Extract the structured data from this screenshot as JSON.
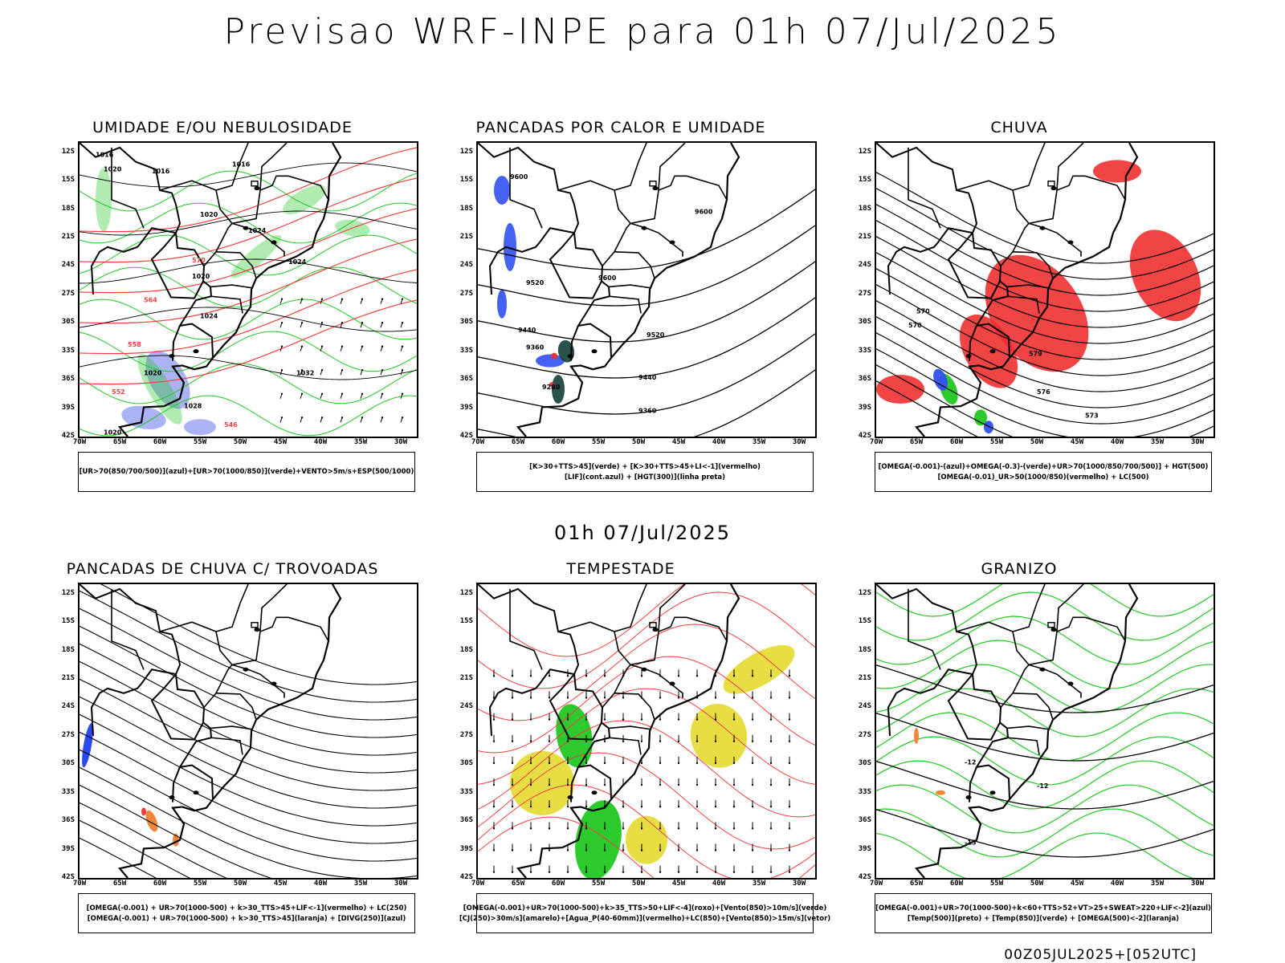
{
  "header": {
    "title": "Previsao WRF-INPE  para 01h 07/Jul/2025"
  },
  "center_stamp": "01h 07/Jul/2025",
  "footer_stamp": "00Z05JUL2025+[052UTC]",
  "axes": {
    "lat_ticks": [
      "12S",
      "15S",
      "18S",
      "21S",
      "24S",
      "27S",
      "30S",
      "33S",
      "36S",
      "39S",
      "42S"
    ],
    "lon_ticks": [
      "70W",
      "65W",
      "60W",
      "55W",
      "50W",
      "45W",
      "40W",
      "35W",
      "30W"
    ]
  },
  "panels": [
    {
      "id": "umidade",
      "title": "UMIDADE E/OU NEBULOSIDADE",
      "legend": [
        "[UR>70(850/700/500)](azul)+[UR>70(1000/850)](verde)+VENTO>5m/s+ESP(500/1000)"
      ],
      "colors": {
        "blue": "#9ea6f2",
        "green": "#22c722",
        "red": "#f04040"
      },
      "contour_labels": [
        "1016",
        "1020",
        "1024",
        "1028",
        "1032",
        "570",
        "564",
        "558",
        "552",
        "546"
      ]
    },
    {
      "id": "pancadas-calor",
      "title": "PANCADAS POR CALOR E UMIDADE",
      "legend": [
        "[K>30+TTS>45](verde) + [K>30+TTS>45+LI<-1](vermelho)",
        "[LIF](cont.azul) + [HGT(300)](linha preta)"
      ],
      "colors": {
        "blue": "#3050f0",
        "dark": "#1e4a40",
        "red": "#e03030"
      },
      "contour_labels": [
        "9600",
        "9520",
        "9440",
        "9360",
        "9280"
      ]
    },
    {
      "id": "chuva",
      "title": "CHUVA",
      "legend": [
        "[OMEGA(-0.001)-(azul)+OMEGA(-0.3)-(verde)+UR>70(1000/850/700/500)] + HGT(500)",
        "[OMEGA(-0.01)_UR>50(1000/850)(vermelho) + LC(500)"
      ],
      "colors": {
        "red": "#f03030",
        "green": "#22c722",
        "blue": "#3050f0"
      },
      "contour_labels": [
        "579",
        "576",
        "573",
        "570"
      ]
    },
    {
      "id": "pancadas-trovoadas",
      "title": "PANCADAS DE CHUVA C/ TROVOADAS",
      "legend": [
        "[OMEGA(-0.001) + UR>70(1000-500) + k>30_TTS>45+LIF<-1](vermelho) + LC(250)",
        "[OMEGA(-0.001) + UR>70(1000-500) + k>30_TTS>45](laranja) + [DIVG(250)](azul)"
      ],
      "colors": {
        "blue": "#2040f0",
        "orange": "#f08030",
        "red": "#f03030"
      },
      "contour_labels": []
    },
    {
      "id": "tempestade",
      "title": "TEMPESTADE",
      "legend": [
        "[OMEGA(-0.001)+UR>70(1000-500)+k>35_TTS>50+LIF<-4](roxo)+[Vento(850)>10m/s](verde)",
        "[CJ(250)>30m/s](amarelo)+[Agua_P(40-60mm)](vermelho)+LC(850)+[Vento(850)>15m/s](vetor)"
      ],
      "colors": {
        "yellow": "#e6dc3a",
        "green": "#22c722",
        "red": "#f04040"
      },
      "contour_labels": []
    },
    {
      "id": "granizo",
      "title": "GRANIZO",
      "legend": [
        "[OMEGA(-0.001)+UR>70(1000-500)+k<60+TTS>52+VT>25+SWEAT>220+LIF<-2](azul)",
        "[Temp(500)](preto) + [Temp(850)](verde) + [OMEGA(500)<-2](laranja)"
      ],
      "colors": {
        "green": "#22c722",
        "orange": "#f08030"
      },
      "contour_labels": [
        "-12",
        "-15"
      ]
    }
  ]
}
